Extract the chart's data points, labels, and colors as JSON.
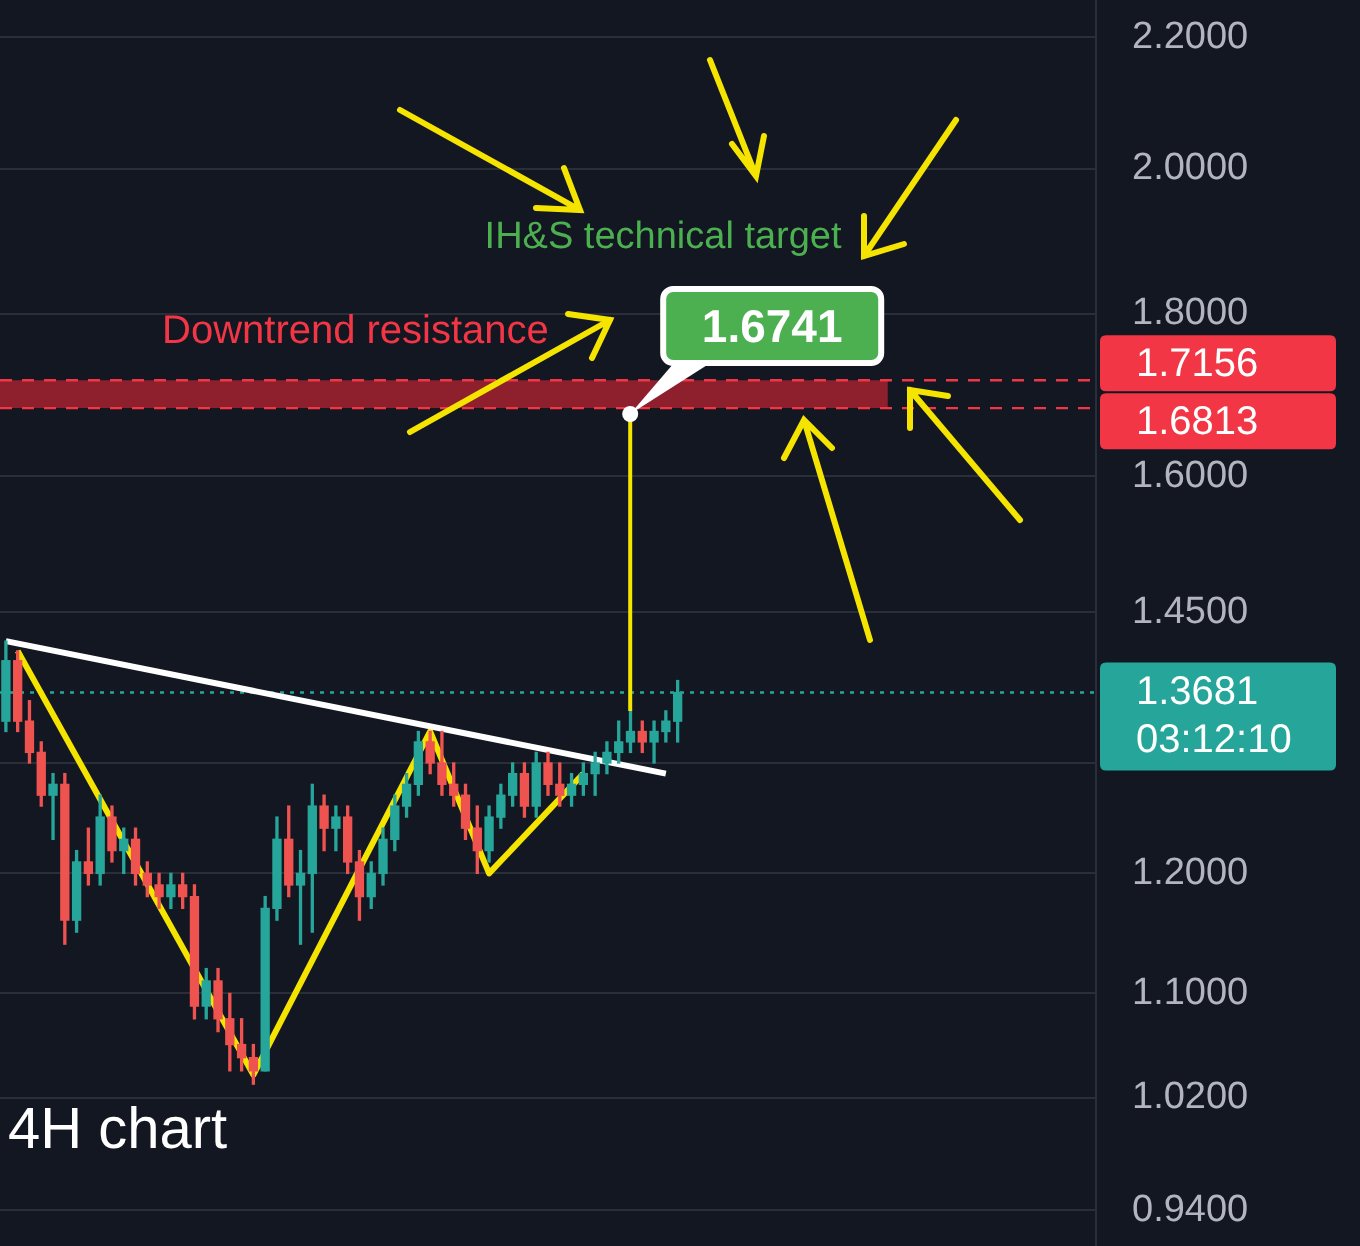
{
  "chart_data": {
    "type": "candlestick",
    "title": "4H chart",
    "categories": [
      null,
      null,
      null,
      null,
      null,
      null,
      null,
      null,
      null,
      null,
      null,
      null,
      null,
      null,
      null,
      null,
      null,
      null,
      null,
      null,
      null,
      null,
      null,
      null,
      null,
      null,
      null,
      null,
      null,
      null,
      null,
      null,
      null,
      null,
      null,
      null,
      null,
      null,
      null,
      null,
      null,
      null,
      null,
      null,
      null,
      null,
      null,
      null,
      null,
      null,
      null,
      null,
      null,
      null,
      null,
      null,
      null,
      null,
      null,
      null,
      null,
      null,
      null,
      null,
      null,
      null,
      null,
      null,
      null,
      null,
      null,
      null,
      null,
      null,
      null,
      null,
      null,
      null,
      null,
      null,
      null,
      null,
      null,
      null,
      null,
      null,
      null,
      null,
      null,
      null,
      null,
      null,
      null
    ],
    "ohlc": [
      [
        1.34,
        1.42,
        1.33,
        1.4
      ],
      [
        1.4,
        1.41,
        1.33,
        1.34
      ],
      [
        1.34,
        1.36,
        1.3,
        1.31
      ],
      [
        1.31,
        1.32,
        1.26,
        1.27
      ],
      [
        1.27,
        1.29,
        1.23,
        1.28
      ],
      [
        1.28,
        1.29,
        1.14,
        1.16
      ],
      [
        1.16,
        1.22,
        1.15,
        1.21
      ],
      [
        1.21,
        1.24,
        1.19,
        1.2
      ],
      [
        1.2,
        1.27,
        1.19,
        1.25
      ],
      [
        1.25,
        1.26,
        1.21,
        1.22
      ],
      [
        1.22,
        1.24,
        1.2,
        1.23
      ],
      [
        1.23,
        1.24,
        1.19,
        1.2
      ],
      [
        1.2,
        1.21,
        1.18,
        1.19
      ],
      [
        1.19,
        1.2,
        1.17,
        1.18
      ],
      [
        1.18,
        1.2,
        1.17,
        1.19
      ],
      [
        1.19,
        1.2,
        1.17,
        1.18
      ],
      [
        1.18,
        1.19,
        1.08,
        1.09
      ],
      [
        1.09,
        1.12,
        1.08,
        1.11
      ],
      [
        1.11,
        1.12,
        1.07,
        1.08
      ],
      [
        1.08,
        1.1,
        1.04,
        1.06
      ],
      [
        1.06,
        1.08,
        1.04,
        1.05
      ],
      [
        1.05,
        1.06,
        1.03,
        1.04
      ],
      [
        1.04,
        1.18,
        1.04,
        1.17
      ],
      [
        1.17,
        1.25,
        1.16,
        1.23
      ],
      [
        1.23,
        1.26,
        1.18,
        1.19
      ],
      [
        1.19,
        1.22,
        1.14,
        1.2
      ],
      [
        1.2,
        1.28,
        1.15,
        1.26
      ],
      [
        1.26,
        1.27,
        1.22,
        1.24
      ],
      [
        1.24,
        1.26,
        1.22,
        1.25
      ],
      [
        1.25,
        1.26,
        1.2,
        1.21
      ],
      [
        1.21,
        1.22,
        1.16,
        1.18
      ],
      [
        1.18,
        1.21,
        1.17,
        1.2
      ],
      [
        1.2,
        1.24,
        1.19,
        1.23
      ],
      [
        1.23,
        1.27,
        1.22,
        1.26
      ],
      [
        1.26,
        1.29,
        1.25,
        1.28
      ],
      [
        1.28,
        1.33,
        1.27,
        1.32
      ],
      [
        1.32,
        1.33,
        1.29,
        1.3
      ],
      [
        1.3,
        1.33,
        1.27,
        1.28
      ],
      [
        1.28,
        1.3,
        1.26,
        1.27
      ],
      [
        1.27,
        1.28,
        1.23,
        1.24
      ],
      [
        1.24,
        1.26,
        1.2,
        1.22
      ],
      [
        1.22,
        1.26,
        1.21,
        1.25
      ],
      [
        1.25,
        1.28,
        1.24,
        1.27
      ],
      [
        1.27,
        1.3,
        1.26,
        1.29
      ],
      [
        1.29,
        1.3,
        1.25,
        1.26
      ],
      [
        1.26,
        1.31,
        1.25,
        1.3
      ],
      [
        1.3,
        1.31,
        1.27,
        1.28
      ],
      [
        1.28,
        1.3,
        1.26,
        1.27
      ],
      [
        1.27,
        1.29,
        1.26,
        1.28
      ],
      [
        1.28,
        1.3,
        1.27,
        1.29
      ],
      [
        1.29,
        1.31,
        1.27,
        1.3
      ],
      [
        1.3,
        1.32,
        1.29,
        1.31
      ],
      [
        1.31,
        1.34,
        1.3,
        1.32
      ],
      [
        1.32,
        1.35,
        1.31,
        1.33
      ],
      [
        1.33,
        1.34,
        1.31,
        1.32
      ],
      [
        1.32,
        1.34,
        1.3,
        1.33
      ],
      [
        1.33,
        1.35,
        1.32,
        1.34
      ],
      [
        1.34,
        1.38,
        1.32,
        1.3681
      ],
      null,
      null,
      null,
      null,
      null,
      null,
      null,
      null,
      null,
      null,
      null,
      null,
      null,
      null,
      null,
      null,
      null,
      null,
      null,
      null,
      null,
      null,
      null,
      null,
      null,
      null,
      null,
      null,
      null,
      null,
      null,
      null,
      null,
      null,
      null
    ],
    "colors": [
      "#26a69a",
      "#ef5350",
      "#ef5350",
      "#ef5350",
      "#26a69a",
      "#ef5350",
      "#26a69a",
      "#ef5350",
      "#26a69a",
      "#ef5350",
      "#26a69a",
      "#ef5350",
      "#ef5350",
      "#ef5350",
      "#26a69a",
      "#ef5350",
      "#ef5350",
      "#26a69a",
      "#ef5350",
      "#ef5350",
      "#ef5350",
      "#ef5350",
      "#26a69a",
      "#26a69a",
      "#ef5350",
      "#26a69a",
      "#26a69a",
      "#ef5350",
      "#26a69a",
      "#ef5350",
      "#ef5350",
      "#26a69a",
      "#26a69a",
      "#26a69a",
      "#26a69a",
      "#26a69a",
      "#ef5350",
      "#ef5350",
      "#ef5350",
      "#ef5350",
      "#ef5350",
      "#26a69a",
      "#26a69a",
      "#26a69a",
      "#ef5350",
      "#26a69a",
      "#ef5350",
      "#ef5350",
      "#26a69a",
      "#26a69a",
      "#26a69a",
      "#26a69a",
      "#26a69a",
      "#26a69a",
      "#ef5350",
      "#26a69a",
      "#26a69a",
      "#26a69a",
      null,
      null,
      null,
      null,
      null,
      null,
      null,
      null,
      null,
      null,
      null,
      null,
      null,
      null,
      null,
      null,
      null,
      null,
      null,
      null,
      null,
      null,
      null,
      null,
      null,
      null,
      null,
      null,
      null,
      null,
      null,
      null,
      null,
      null,
      null
    ],
    "series": [
      {
        "type": "line",
        "color": "#ffffff",
        "values": [
          1.42,
          null,
          null,
          null,
          null,
          null,
          null,
          null,
          null,
          null,
          null,
          null,
          null,
          null,
          null,
          null,
          null,
          null,
          null,
          null,
          null,
          null,
          null,
          null,
          null,
          null,
          null,
          null,
          null,
          null,
          null,
          null,
          null,
          null,
          null,
          null,
          null,
          null,
          null,
          null,
          null,
          null,
          null,
          null,
          null,
          null,
          null,
          null,
          null,
          null,
          null,
          null,
          null,
          null,
          null,
          null,
          1.29,
          null,
          null,
          null,
          null,
          null,
          null,
          null,
          null,
          null,
          null,
          null,
          null,
          null,
          null,
          null,
          null,
          null,
          null,
          null,
          null,
          null,
          null,
          null,
          null,
          null,
          null,
          null,
          null,
          null,
          null,
          null,
          null,
          null,
          null,
          null,
          null
        ]
      },
      {
        "type": "line",
        "color": "#f5e400",
        "values": [
          null,
          1.41,
          null,
          null,
          null,
          null,
          null,
          null,
          null,
          null,
          null,
          null,
          null,
          null,
          null,
          null,
          null,
          null,
          null,
          null,
          null,
          1.037,
          null,
          null,
          null,
          null,
          null,
          null,
          null,
          null,
          null,
          null,
          null,
          null,
          null,
          null,
          1.33,
          null,
          null,
          null,
          null,
          1.2,
          null,
          null,
          null,
          null,
          null,
          null,
          null,
          1.29,
          null,
          null,
          null,
          null,
          null,
          null,
          null,
          null,
          null,
          null,
          null,
          null,
          null,
          null,
          null,
          null,
          null,
          null,
          null,
          null,
          null,
          null,
          null,
          null,
          null,
          null,
          null,
          null,
          null,
          null,
          null,
          null,
          null,
          null,
          null,
          null,
          null,
          null,
          null,
          null,
          null,
          null,
          null
        ]
      }
    ],
    "ylim": [
      0.916,
      2.26
    ],
    "yticks": [
      {
        "value": 0.94,
        "label": "0.9400"
      },
      {
        "value": 1.02,
        "label": "1.0200"
      },
      {
        "value": 1.1,
        "label": "1.1000"
      },
      {
        "value": 1.2,
        "label": "1.2000"
      },
      {
        "value": 1.3,
        "label": null
      },
      {
        "value": 1.45,
        "label": "1.4500"
      },
      {
        "value": 1.6,
        "label": "1.6000"
      },
      {
        "value": 1.8,
        "label": "1.8000"
      },
      {
        "value": 2.0,
        "label": "2.0000"
      },
      {
        "value": 2.2,
        "label": "2.2000"
      }
    ],
    "log": true,
    "grid": "y",
    "legend": false,
    "tick_labels": "y",
    "marker": "none",
    "bands": [
      {
        "axis": "y",
        "from": 1.6813,
        "to": 1.7156,
        "label": "Downtrend resistance",
        "color": "#8e1f2c"
      }
    ],
    "ref_lines": [
      {
        "axis": "y",
        "value": 1.7156,
        "label": "1.7156",
        "color": "#f23645",
        "line_style": "dashed"
      },
      {
        "axis": "y",
        "value": 1.6813,
        "label": "1.6813",
        "color": "#f23645",
        "line_style": "dashed"
      },
      {
        "axis": "y",
        "value": 1.3681,
        "label": "1.3681",
        "color": "#26a69a",
        "line_style": "dotted"
      }
    ],
    "annotations": [
      "IH&S technical target",
      {
        "text": "1.6741",
        "y": 1.6741
      },
      "03:12:10"
    ]
  }
}
